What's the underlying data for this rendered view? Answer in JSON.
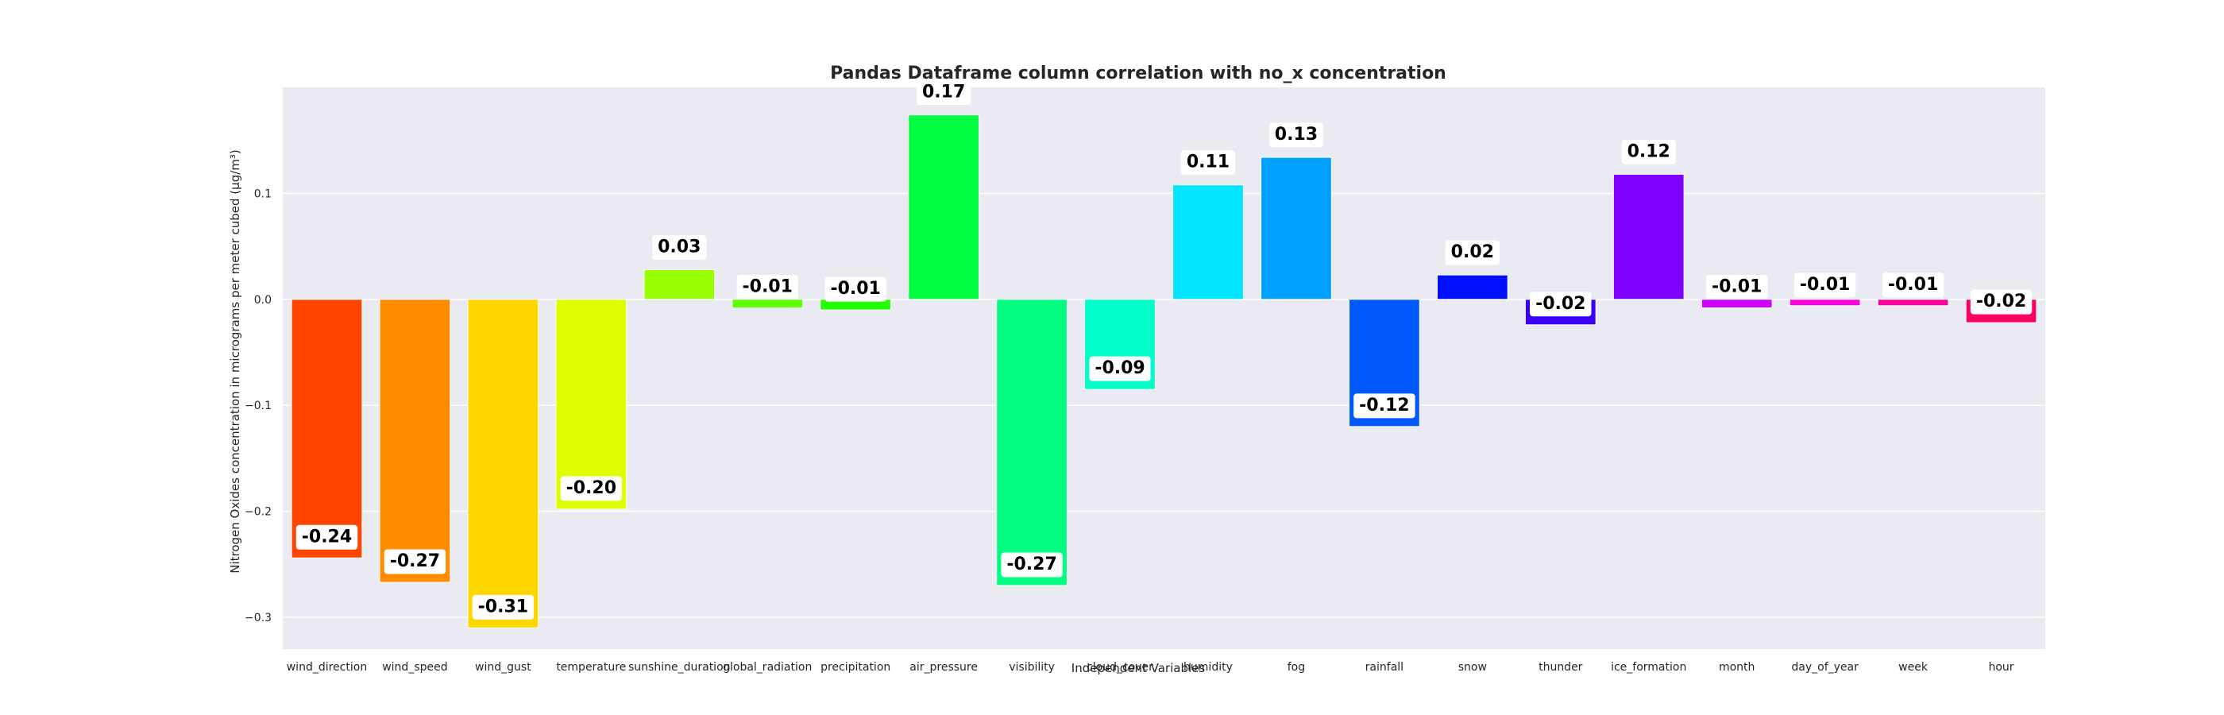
{
  "chart_data": {
    "type": "bar",
    "title": "Pandas Dataframe column correlation with no_x concentration",
    "xlabel": "Independent Variables",
    "ylabel": "Nitrogen Oxides concentration in micrograms per meter cubed (µg/m³)",
    "ylim": [
      -0.33,
      0.2
    ],
    "yticks": [
      0.1,
      0.0,
      -0.1,
      -0.2,
      -0.3
    ],
    "ytick_labels": [
      "0.1",
      "0.0",
      "−0.1",
      "−0.2",
      "−0.3"
    ],
    "grid": true,
    "categories": [
      "wind_direction",
      "wind_speed",
      "wind_gust",
      "temperature",
      "sunshine_duration",
      "global_radiation",
      "precipitation",
      "air_pressure",
      "visibility",
      "cloud_cover",
      "humidity",
      "fog",
      "rainfall",
      "snow",
      "thunder",
      "ice_formation",
      "month",
      "day_of_year",
      "week",
      "hour"
    ],
    "values": [
      -0.244,
      -0.267,
      -0.31,
      -0.198,
      0.028,
      -0.008,
      -0.01,
      0.174,
      -0.27,
      -0.085,
      0.108,
      0.134,
      -0.12,
      0.023,
      -0.024,
      0.118,
      -0.008,
      -0.006,
      -0.006,
      -0.022
    ],
    "value_labels": [
      "-0.24",
      "-0.27",
      "-0.31",
      "-0.20",
      "0.03",
      "-0.01",
      "-0.01",
      "0.17",
      "-0.27",
      "-0.09",
      "0.11",
      "0.13",
      "-0.12",
      "0.02",
      "-0.02",
      "0.12",
      "-0.01",
      "-0.01",
      "-0.01",
      "-0.02"
    ],
    "colors": [
      "#ff4500",
      "#ff8c00",
      "#ffd700",
      "#dfff00",
      "#9aff00",
      "#5dff00",
      "#22ff00",
      "#00ff40",
      "#00ff80",
      "#00ffc8",
      "#00e5ff",
      "#00a0ff",
      "#0058ff",
      "#0010ff",
      "#3a00ff",
      "#8000ff",
      "#d000ff",
      "#ff00dc",
      "#ff00a0",
      "#ff0062"
    ],
    "background_color": "#eaeaf2"
  }
}
